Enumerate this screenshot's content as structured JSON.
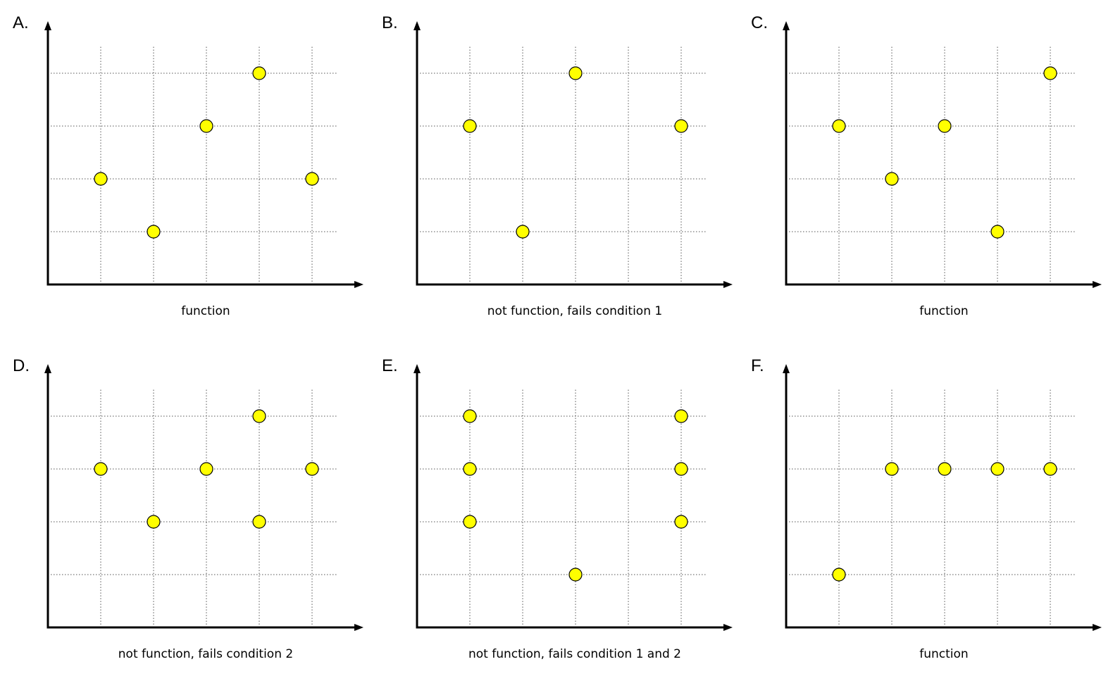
{
  "chart_data": [
    {
      "type": "scatter",
      "panel_label": "A.",
      "caption": "function",
      "xlim": [
        0,
        6
      ],
      "ylim": [
        0,
        4.5
      ],
      "grid": true,
      "points": [
        [
          1,
          2
        ],
        [
          2,
          1
        ],
        [
          3,
          3
        ],
        [
          4,
          4
        ],
        [
          5,
          2
        ]
      ]
    },
    {
      "type": "scatter",
      "panel_label": "B.",
      "caption": "not function, fails condition 1",
      "xlim": [
        0,
        6
      ],
      "ylim": [
        0,
        4.5
      ],
      "grid": true,
      "points": [
        [
          1,
          3
        ],
        [
          2,
          1
        ],
        [
          3,
          4
        ],
        [
          5,
          3
        ]
      ]
    },
    {
      "type": "scatter",
      "panel_label": "C.",
      "caption": "function",
      "xlim": [
        0,
        6
      ],
      "ylim": [
        0,
        4.5
      ],
      "grid": true,
      "points": [
        [
          1,
          3
        ],
        [
          2,
          2
        ],
        [
          3,
          3
        ],
        [
          4,
          1
        ],
        [
          5,
          4
        ]
      ]
    },
    {
      "type": "scatter",
      "panel_label": "D.",
      "caption": "not function, fails condition 2",
      "xlim": [
        0,
        6
      ],
      "ylim": [
        0,
        4.5
      ],
      "grid": true,
      "points": [
        [
          1,
          3
        ],
        [
          2,
          2
        ],
        [
          3,
          3
        ],
        [
          4,
          4
        ],
        [
          4,
          2
        ],
        [
          5,
          3
        ]
      ]
    },
    {
      "type": "scatter",
      "panel_label": "E.",
      "caption": "not function, fails condition 1 and 2",
      "xlim": [
        0,
        6
      ],
      "ylim": [
        0,
        4.5
      ],
      "grid": true,
      "points": [
        [
          1,
          4
        ],
        [
          1,
          3
        ],
        [
          1,
          2
        ],
        [
          3,
          1
        ],
        [
          5,
          4
        ],
        [
          5,
          3
        ],
        [
          5,
          2
        ]
      ]
    },
    {
      "type": "scatter",
      "panel_label": "F.",
      "caption": "function",
      "xlim": [
        0,
        6
      ],
      "ylim": [
        0,
        4.5
      ],
      "grid": true,
      "points": [
        [
          1,
          1
        ],
        [
          2,
          3
        ],
        [
          3,
          3
        ],
        [
          4,
          3
        ],
        [
          5,
          3
        ]
      ]
    }
  ],
  "colors": {
    "point_fill": "#ffff00",
    "point_stroke": "#000000",
    "axis": "#000000",
    "grid": "#555555"
  }
}
